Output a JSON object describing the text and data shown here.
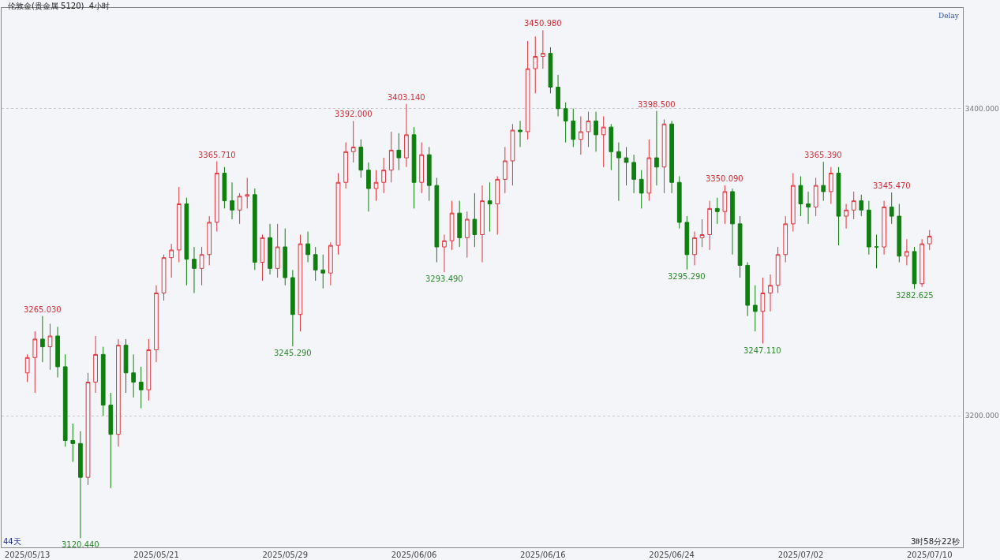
{
  "chart_data": {
    "type": "candlestick",
    "title": "伦敦金(贵金属 5120)  4小时",
    "categories": [
      "2025/05/13",
      null,
      null,
      null,
      null,
      null,
      null,
      null,
      null,
      null,
      null,
      null,
      null,
      null,
      null,
      null,
      null,
      "2025/05/21",
      null,
      null,
      null,
      null,
      null,
      null,
      null,
      null,
      null,
      null,
      null,
      null,
      null,
      null,
      null,
      null,
      "2025/05/29",
      null,
      null,
      null,
      null,
      null,
      null,
      null,
      null,
      null,
      null,
      null,
      null,
      null,
      null,
      null,
      null,
      "2025/06/06",
      null,
      null,
      null,
      null,
      null,
      null,
      null,
      null,
      null,
      null,
      null,
      null,
      null,
      null,
      null,
      null,
      "2025/06/16",
      null,
      null,
      null,
      null,
      null,
      null,
      null,
      null,
      null,
      null,
      null,
      null,
      null,
      null,
      null,
      null,
      "2025/06/24",
      null,
      null,
      null,
      null,
      null,
      null,
      null,
      null,
      null,
      null,
      null,
      null,
      null,
      null,
      null,
      null,
      "2025/07/02",
      null,
      null,
      null,
      null,
      null,
      null,
      null,
      null,
      null,
      null,
      null,
      null,
      null,
      null,
      null,
      null,
      "2025/07/10"
    ],
    "ohlc": [
      [
        3228,
        3240,
        3222,
        3238
      ],
      [
        3238,
        3255,
        3215,
        3250
      ],
      [
        3250,
        3265.03,
        3235,
        3245
      ],
      [
        3245,
        3260,
        3230,
        3252
      ],
      [
        3252,
        3258,
        3225,
        3232
      ],
      [
        3232,
        3240,
        3180,
        3184
      ],
      [
        3184,
        3195,
        3170,
        3182
      ],
      [
        3182,
        3190,
        3120.44,
        3160
      ],
      [
        3160,
        3228,
        3155,
        3222
      ],
      [
        3222,
        3252,
        3215,
        3240
      ],
      [
        3240,
        3245,
        3200,
        3207
      ],
      [
        3207,
        3215,
        3153,
        3188
      ],
      [
        3188,
        3250,
        3180,
        3246
      ],
      [
        3246,
        3250,
        3215,
        3228
      ],
      [
        3228,
        3240,
        3212,
        3222
      ],
      [
        3222,
        3232,
        3205,
        3217
      ],
      [
        3217,
        3250,
        3210,
        3243
      ],
      [
        3243,
        3285,
        3235,
        3280
      ],
      [
        3280,
        3305,
        3275,
        3303
      ],
      [
        3303,
        3312,
        3290,
        3308
      ],
      [
        3308,
        3349,
        3300,
        3338
      ],
      [
        3338,
        3342,
        3285,
        3302
      ],
      [
        3302,
        3310,
        3280,
        3296
      ],
      [
        3296,
        3310,
        3285,
        3305
      ],
      [
        3305,
        3330,
        3298,
        3326
      ],
      [
        3326,
        3365.71,
        3320,
        3358
      ],
      [
        3358,
        3362,
        3335,
        3340
      ],
      [
        3340,
        3352,
        3328,
        3334
      ],
      [
        3334,
        3345,
        3325,
        3343
      ],
      [
        3343,
        3355,
        3335,
        3344
      ],
      [
        3344,
        3348,
        3295,
        3300
      ],
      [
        3300,
        3318,
        3288,
        3316
      ],
      [
        3316,
        3325,
        3292,
        3296
      ],
      [
        3296,
        3325,
        3290,
        3310
      ],
      [
        3310,
        3322,
        3285,
        3290
      ],
      [
        3290,
        3295,
        3245.29,
        3266
      ],
      [
        3266,
        3318,
        3255,
        3312
      ],
      [
        3312,
        3320,
        3300,
        3305
      ],
      [
        3305,
        3310,
        3288,
        3295
      ],
      [
        3295,
        3305,
        3283,
        3293
      ],
      [
        3293,
        3313,
        3285,
        3311
      ],
      [
        3311,
        3358,
        3305,
        3352
      ],
      [
        3352,
        3378,
        3348,
        3372
      ],
      [
        3372,
        3392,
        3365,
        3375
      ],
      [
        3375,
        3380,
        3355,
        3360
      ],
      [
        3360,
        3365,
        3333,
        3348
      ],
      [
        3348,
        3360,
        3340,
        3352
      ],
      [
        3352,
        3368,
        3345,
        3360
      ],
      [
        3360,
        3385,
        3352,
        3373
      ],
      [
        3373,
        3384,
        3360,
        3368
      ],
      [
        3368,
        3403.14,
        3362,
        3383
      ],
      [
        3383,
        3388,
        3335,
        3352
      ],
      [
        3352,
        3378,
        3345,
        3370
      ],
      [
        3370,
        3375,
        3340,
        3350
      ],
      [
        3350,
        3355,
        3300,
        3310
      ],
      [
        3310,
        3318,
        3293.49,
        3314
      ],
      [
        3314,
        3340,
        3308,
        3332
      ],
      [
        3332,
        3340,
        3310,
        3316
      ],
      [
        3316,
        3333,
        3303,
        3328
      ],
      [
        3328,
        3345,
        3310,
        3318
      ],
      [
        3318,
        3350,
        3300,
        3340
      ],
      [
        3340,
        3352,
        3320,
        3338
      ],
      [
        3338,
        3356,
        3318,
        3354
      ],
      [
        3354,
        3375,
        3345,
        3366
      ],
      [
        3366,
        3390,
        3350,
        3386
      ],
      [
        3386,
        3392,
        3375,
        3385
      ],
      [
        3385,
        3444,
        3380,
        3426
      ],
      [
        3426,
        3447,
        3410,
        3434
      ],
      [
        3434,
        3450.98,
        3426,
        3436
      ],
      [
        3436,
        3440,
        3410,
        3414
      ],
      [
        3414,
        3422,
        3395,
        3400
      ],
      [
        3400,
        3404,
        3378,
        3392
      ],
      [
        3392,
        3400,
        3375,
        3380
      ],
      [
        3380,
        3395,
        3370,
        3385
      ],
      [
        3385,
        3398,
        3375,
        3392
      ],
      [
        3392,
        3398,
        3372,
        3383
      ],
      [
        3383,
        3395,
        3362,
        3388
      ],
      [
        3388,
        3390,
        3360,
        3372
      ],
      [
        3372,
        3378,
        3340,
        3368
      ],
      [
        3368,
        3375,
        3350,
        3365
      ],
      [
        3365,
        3370,
        3345,
        3354
      ],
      [
        3354,
        3360,
        3335,
        3345
      ],
      [
        3345,
        3380,
        3340,
        3368
      ],
      [
        3368,
        3398.5,
        3350,
        3362
      ],
      [
        3362,
        3393,
        3345,
        3390
      ],
      [
        3390,
        3392,
        3345,
        3352
      ],
      [
        3352,
        3356,
        3322,
        3326
      ],
      [
        3326,
        3330,
        3295.29,
        3305
      ],
      [
        3305,
        3320,
        3298,
        3316
      ],
      [
        3316,
        3328,
        3310,
        3318
      ],
      [
        3318,
        3340,
        3308,
        3335
      ],
      [
        3335,
        3342,
        3325,
        3333
      ],
      [
        3333,
        3350.09,
        3325,
        3346
      ],
      [
        3346,
        3348,
        3305,
        3325
      ],
      [
        3325,
        3330,
        3290,
        3298
      ],
      [
        3298,
        3300,
        3265,
        3272
      ],
      [
        3272,
        3285,
        3255,
        3268
      ],
      [
        3268,
        3290,
        3247.11,
        3280
      ],
      [
        3280,
        3292,
        3268,
        3285
      ],
      [
        3285,
        3310,
        3280,
        3305
      ],
      [
        3305,
        3330,
        3300,
        3325
      ],
      [
        3325,
        3358,
        3320,
        3350
      ],
      [
        3350,
        3356,
        3330,
        3338
      ],
      [
        3338,
        3346,
        3325,
        3336
      ],
      [
        3336,
        3355,
        3330,
        3350
      ],
      [
        3350,
        3365.39,
        3340,
        3346
      ],
      [
        3346,
        3362,
        3338,
        3358
      ],
      [
        3358,
        3362,
        3311,
        3330
      ],
      [
        3330,
        3338,
        3322,
        3334
      ],
      [
        3334,
        3346,
        3328,
        3340
      ],
      [
        3340,
        3344,
        3330,
        3334
      ],
      [
        3334,
        3340,
        3305,
        3310
      ],
      [
        3310,
        3318,
        3296,
        3310
      ],
      [
        3310,
        3340,
        3305,
        3336
      ],
      [
        3336,
        3345.47,
        3325,
        3330
      ],
      [
        3330,
        3338,
        3300,
        3304
      ],
      [
        3304,
        3315,
        3298,
        3307
      ],
      [
        3307,
        3310,
        3282.625,
        3286
      ],
      [
        3286,
        3315,
        3284,
        3312
      ],
      [
        3312,
        3321,
        3308,
        3317
      ]
    ],
    "ylim": [
      3114.4,
      3465.6
    ],
    "yticks": [
      {
        "value": 3400,
        "label": "3400.000"
      },
      {
        "value": 3200,
        "label": "3200.000"
      }
    ],
    "grid": "y",
    "annotations": [
      {
        "text": "3265.030",
        "y": 3265.03
      },
      {
        "text": "3120.440",
        "y": 3120.44
      },
      {
        "text": "3365.710",
        "y": 3365.71
      },
      {
        "text": "3245.290",
        "y": 3245.29
      },
      {
        "text": "3392.000",
        "y": 3392
      },
      {
        "text": "3403.140",
        "y": 3403.14
      },
      {
        "text": "3293.490",
        "y": 3293.49
      },
      {
        "text": "3450.980",
        "y": 3450.98
      },
      {
        "text": "3398.500",
        "y": 3398.5
      },
      {
        "text": "3295.290",
        "y": 3295.29
      },
      {
        "text": "3350.090",
        "y": 3350.09
      },
      {
        "text": "3247.110",
        "y": 3247.11
      },
      {
        "text": "3365.390",
        "y": 3365.39
      },
      {
        "text": "3345.470",
        "y": 3345.47
      },
      {
        "text": "3282.625",
        "y": 3282.625
      },
      "Delay",
      "44天",
      "3时58分22秒"
    ]
  }
}
